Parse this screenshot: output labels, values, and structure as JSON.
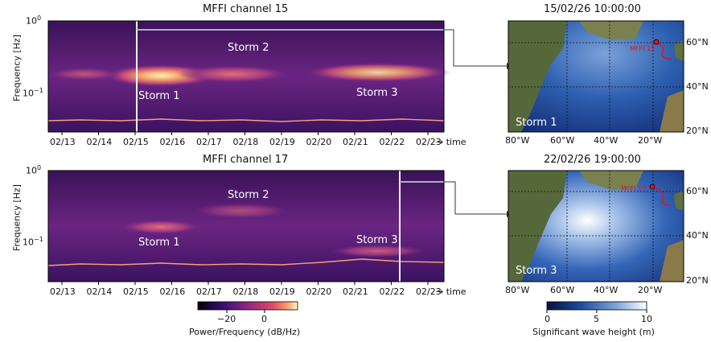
{
  "colors": {
    "spectrogram_low": "#1b0a3a",
    "spectrogram_mid": "#7a2a8c",
    "spectrogram_high": "#fcecb0",
    "ocean_low": "#0a1a4a",
    "ocean_high": "#e6eefa",
    "land": "#5a6e3a",
    "track": "#e0141c",
    "cursor": "#ffffff",
    "connector": "#333333"
  },
  "chart_data": [
    {
      "type": "heatmap",
      "title": "MFFI channel 15",
      "ylabel": "Frequency [Hz]",
      "xlabel": "→ time",
      "x_ticks": [
        "02/13",
        "02/14",
        "02/15",
        "02/16",
        "02/17",
        "02/18",
        "02/19",
        "02/20",
        "02/21",
        "02/22",
        "02/23"
      ],
      "y_scale": "log",
      "ylim": [
        0.03,
        1.0
      ],
      "y_ticks": [
        "10^0",
        "10^-1"
      ],
      "cursor_date": "02/15 10:00",
      "annotations": [
        {
          "text": "Storm 1",
          "x": "02/15",
          "y": 0.1
        },
        {
          "text": "Storm 2",
          "x": "02/18",
          "y": 0.4
        },
        {
          "text": "Storm 3",
          "x": "02/22",
          "y": 0.1
        }
      ]
    },
    {
      "type": "heatmap",
      "title": "MFFI channel 17",
      "ylabel": "Frequency [Hz]",
      "xlabel": "→ time",
      "x_ticks": [
        "02/13",
        "02/14",
        "02/15",
        "02/16",
        "02/17",
        "02/18",
        "02/19",
        "02/20",
        "02/21",
        "02/22",
        "02/23"
      ],
      "y_scale": "log",
      "ylim": [
        0.03,
        1.0
      ],
      "y_ticks": [
        "10^0",
        "10^-1"
      ],
      "cursor_date": "02/22 19:00",
      "annotations": [
        {
          "text": "Storm 1",
          "x": "02/15",
          "y": 0.1
        },
        {
          "text": "Storm 2",
          "x": "02/18",
          "y": 0.4
        },
        {
          "text": "Storm 3",
          "x": "02/22",
          "y": 0.1
        }
      ]
    },
    {
      "type": "heatmap",
      "title": "15/02/26 10:00:00",
      "x_ticks": [
        "80°W",
        "60°W",
        "40°W",
        "20°W"
      ],
      "y_ticks": [
        "60°N",
        "40°N",
        "20°N"
      ],
      "annotations": [
        {
          "text": "Storm 1"
        },
        {
          "text": "MFFI 15"
        }
      ]
    },
    {
      "type": "heatmap",
      "title": "22/02/26 19:00:00",
      "x_ticks": [
        "80°W",
        "60°W",
        "40°W",
        "20°W"
      ],
      "y_ticks": [
        "60°N",
        "40°N",
        "20°N"
      ],
      "annotations": [
        {
          "text": "Storm 3"
        },
        {
          "text": "MFFI 17"
        }
      ]
    }
  ],
  "colorbars": {
    "power": {
      "label": "Power/Frequency (dB/Hz)",
      "ticks": [
        "−20",
        "0"
      ],
      "range": [
        -30,
        10
      ]
    },
    "wave": {
      "label": "Significant wave height (m)",
      "ticks": [
        "0",
        "5",
        "10"
      ],
      "range": [
        0,
        10
      ]
    }
  }
}
